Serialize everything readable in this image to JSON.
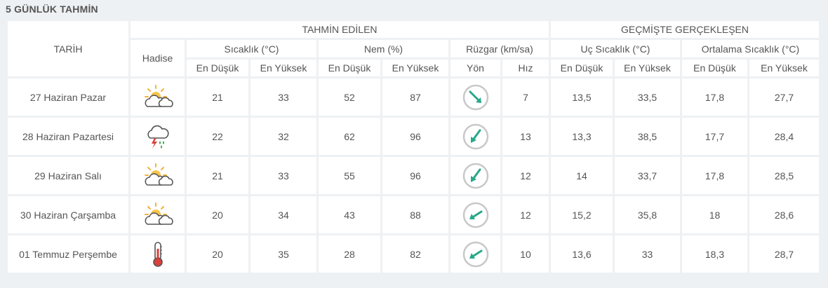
{
  "title": "5 GÜNLÜK TAHMİN",
  "headers": {
    "tarih": "TARİH",
    "forecast": "TAHMİN EDİLEN",
    "past": "GEÇMİŞTE GERÇEKLEŞEN",
    "hadise": "Hadise",
    "sicaklik": "Sıcaklık (°C)",
    "nem": "Nem (%)",
    "ruzgar": "Rüzgar (km/sa)",
    "uc_sicaklik": "Uç Sıcaklık (°C)",
    "ort_sicaklik": "Ortalama Sıcaklık (°C)",
    "en_dusuk": "En Düşük",
    "en_yuksek": "En Yüksek",
    "yon": "Yön",
    "hiz": "Hız"
  },
  "colors": {
    "blue": "#2e86ab",
    "red": "#cf3846",
    "orange": "#e0a230",
    "purple": "#6b6b94",
    "teal": "#27a889"
  },
  "rows": [
    {
      "date": "27 Haziran Pazar",
      "icon": "partly-cloudy-icon",
      "temp_low": "21",
      "temp_high": "33",
      "hum_low": "52",
      "hum_high": "87",
      "wind_dir": "arrow-southeast-icon",
      "wind_speed": "7",
      "uc_low": "13,5",
      "uc_high": "33,5",
      "ort_low": "17,8",
      "ort_high": "27,7"
    },
    {
      "date": "28 Haziran Pazartesi",
      "icon": "thunderstorm-icon",
      "temp_low": "22",
      "temp_high": "32",
      "hum_low": "62",
      "hum_high": "96",
      "wind_dir": "arrow-southwest-icon",
      "wind_speed": "13",
      "uc_low": "13,3",
      "uc_high": "38,5",
      "ort_low": "17,7",
      "ort_high": "28,4"
    },
    {
      "date": "29 Haziran Salı",
      "icon": "partly-cloudy-icon",
      "temp_low": "21",
      "temp_high": "33",
      "hum_low": "55",
      "hum_high": "96",
      "wind_dir": "arrow-southwest-icon",
      "wind_speed": "12",
      "uc_low": "14",
      "uc_high": "33,7",
      "ort_low": "17,8",
      "ort_high": "28,5"
    },
    {
      "date": "30 Haziran Çarşamba",
      "icon": "partly-cloudy-icon",
      "temp_low": "20",
      "temp_high": "34",
      "hum_low": "43",
      "hum_high": "88",
      "wind_dir": "arrow-west-southwest-icon",
      "wind_speed": "12",
      "uc_low": "15,2",
      "uc_high": "35,8",
      "ort_low": "18",
      "ort_high": "28,6"
    },
    {
      "date": "01 Temmuz Perşembe",
      "icon": "thermometer-hot-icon",
      "temp_low": "20",
      "temp_high": "35",
      "hum_low": "28",
      "hum_high": "82",
      "wind_dir": "arrow-west-southwest-icon",
      "wind_speed": "10",
      "uc_low": "13,6",
      "uc_high": "33",
      "ort_low": "18,3",
      "ort_high": "28,7"
    }
  ]
}
